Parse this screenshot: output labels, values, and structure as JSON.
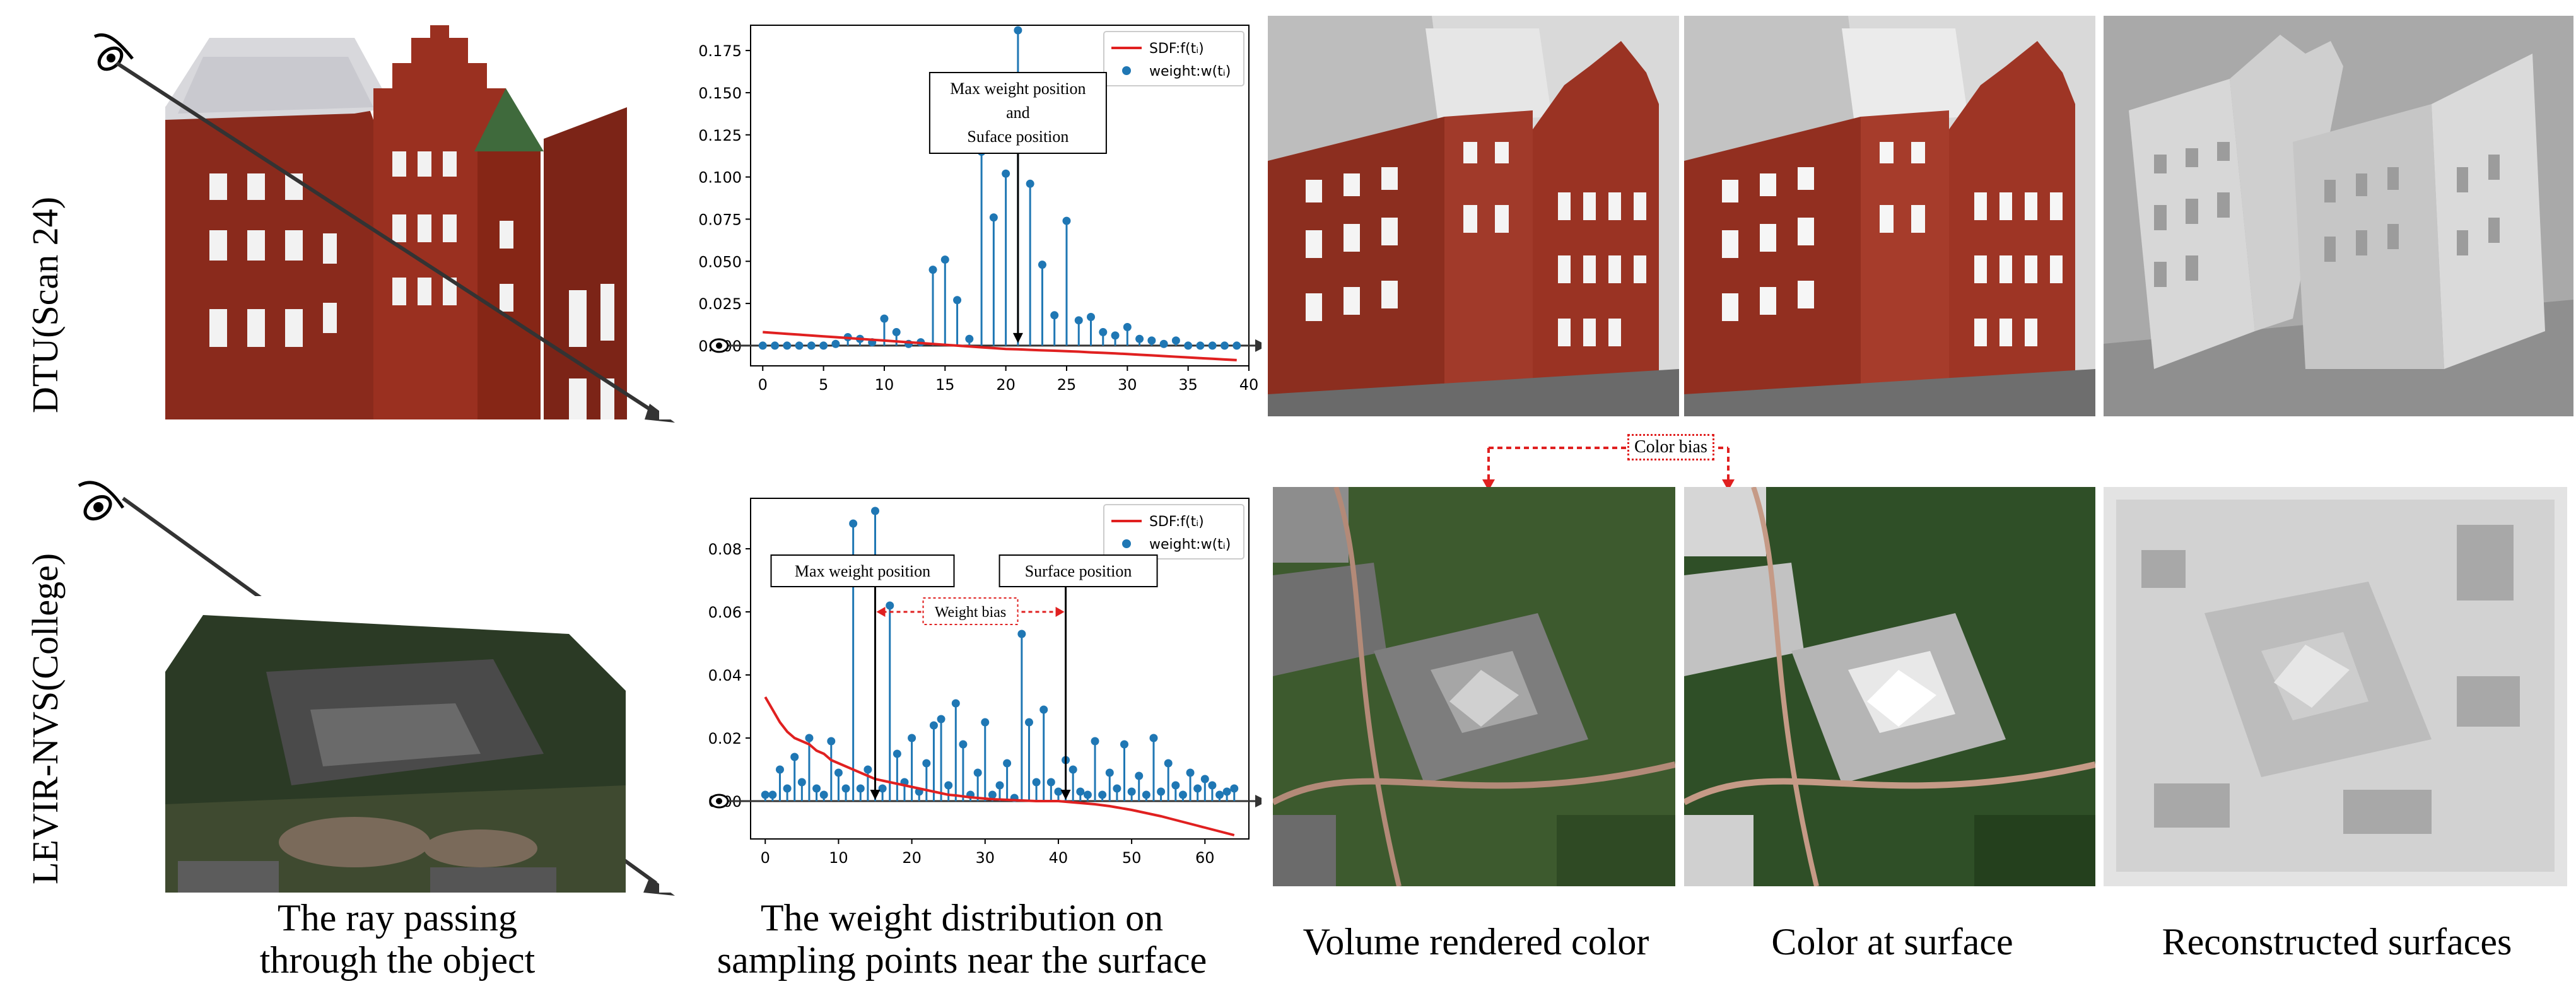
{
  "rows": [
    {
      "label": "DTU(Scan 24)"
    },
    {
      "label": "LEVIR-NVS(College)"
    }
  ],
  "captions": {
    "ray": "The ray passing\nthrough the object",
    "weight": "The weight distribution on\nsampling points near the surface",
    "volume": "Volume rendered color",
    "surface_color": "Color at surface",
    "reconstructed": "Reconstructed surfaces"
  },
  "color_bias_label": "Color bias",
  "chart_data": [
    {
      "type": "stem+line",
      "x": [
        0,
        1,
        2,
        3,
        4,
        5,
        6,
        7,
        8,
        9,
        10,
        11,
        12,
        13,
        14,
        15,
        16,
        17,
        18,
        19,
        20,
        21,
        22,
        23,
        24,
        25,
        26,
        27,
        28,
        29,
        30,
        31,
        32,
        33,
        34,
        35,
        36,
        37,
        38,
        39
      ],
      "series": [
        {
          "name": "SDF:f(tᵢ)",
          "kind": "line",
          "color": "#e02020",
          "values": [
            0.008,
            0.0075,
            0.007,
            0.0065,
            0.006,
            0.0055,
            0.005,
            0.0045,
            0.004,
            0.0035,
            0.003,
            0.0025,
            0.002,
            0.0015,
            0.001,
            0.0005,
            0.0,
            -0.0005,
            -0.001,
            -0.0015,
            -0.002,
            -0.0022,
            -0.0025,
            -0.0028,
            -0.003,
            -0.0033,
            -0.0036,
            -0.004,
            -0.0043,
            -0.0046,
            -0.005,
            -0.0054,
            -0.0058,
            -0.0062,
            -0.0066,
            -0.007,
            -0.0074,
            -0.0078,
            -0.0082,
            -0.0086
          ]
        },
        {
          "name": "weight:w(tᵢ)",
          "kind": "stem",
          "color": "#1f77b4",
          "values": [
            0,
            0,
            0,
            0,
            0,
            0,
            0.001,
            0.005,
            0.004,
            0.002,
            0.016,
            0.008,
            0.001,
            0.002,
            0.045,
            0.051,
            0.027,
            0.004,
            0.115,
            0.076,
            0.102,
            0.187,
            0.096,
            0.048,
            0.018,
            0.074,
            0.015,
            0.017,
            0.008,
            0.006,
            0.011,
            0.004,
            0.003,
            0.001,
            0.003,
            0,
            0,
            0,
            0,
            0
          ]
        }
      ],
      "xlim": [
        -1,
        40
      ],
      "ylim": [
        -0.012,
        0.19
      ],
      "xticks": [
        0,
        5,
        10,
        15,
        20,
        25,
        30,
        35,
        40
      ],
      "yticks": [
        0.0,
        0.025,
        0.05,
        0.075,
        0.1,
        0.125,
        0.15,
        0.175
      ],
      "ytick_labels": [
        "0.000",
        "0.025",
        "0.050",
        "0.075",
        "0.100",
        "0.125",
        "0.150",
        "0.175"
      ],
      "legend_position": "top-right",
      "annotations": [
        {
          "text": "Max weight position\nand\nSuface position",
          "x": 21
        }
      ]
    },
    {
      "type": "stem+line",
      "x": [
        0,
        1,
        2,
        3,
        4,
        5,
        6,
        7,
        8,
        9,
        10,
        11,
        12,
        13,
        14,
        15,
        16,
        17,
        18,
        19,
        20,
        21,
        22,
        23,
        24,
        25,
        26,
        27,
        28,
        29,
        30,
        31,
        32,
        33,
        34,
        35,
        36,
        37,
        38,
        39,
        40,
        41,
        42,
        43,
        44,
        45,
        46,
        47,
        48,
        49,
        50,
        51,
        52,
        53,
        54,
        55,
        56,
        57,
        58,
        59,
        60,
        61,
        62,
        63,
        64
      ],
      "series": [
        {
          "name": "SDF:f(tᵢ)",
          "kind": "line",
          "color": "#e02020",
          "values": [
            0.033,
            0.029,
            0.025,
            0.022,
            0.02,
            0.019,
            0.018,
            0.016,
            0.015,
            0.013,
            0.012,
            0.011,
            0.01,
            0.009,
            0.008,
            0.007,
            0.0065,
            0.006,
            0.0055,
            0.005,
            0.0045,
            0.004,
            0.0035,
            0.003,
            0.0025,
            0.002,
            0.0018,
            0.0015,
            0.0012,
            0.001,
            0.0008,
            0.0006,
            0.0005,
            0.0004,
            0.0003,
            0.0002,
            0.0001,
            0.0,
            0.0,
            0.0,
            0.0,
            -0.0002,
            -0.0004,
            -0.0006,
            -0.0008,
            -0.001,
            -0.0013,
            -0.0016,
            -0.002,
            -0.0024,
            -0.0028,
            -0.0033,
            -0.0038,
            -0.0043,
            -0.0048,
            -0.0054,
            -0.006,
            -0.0066,
            -0.0072,
            -0.0078,
            -0.0084,
            -0.009,
            -0.0096,
            -0.0102,
            -0.0108
          ]
        },
        {
          "name": "weight:w(tᵢ)",
          "kind": "stem",
          "color": "#1f77b4",
          "values": [
            0.002,
            0.002,
            0.01,
            0.004,
            0.014,
            0.006,
            0.02,
            0.004,
            0.002,
            0.019,
            0.009,
            0.004,
            0.088,
            0.004,
            0.01,
            0.092,
            0.004,
            0.062,
            0.015,
            0.006,
            0.02,
            0.003,
            0.012,
            0.024,
            0.026,
            0.005,
            0.031,
            0.018,
            0.002,
            0.009,
            0.025,
            0.002,
            0.005,
            0.012,
            0.001,
            0.053,
            0.025,
            0.006,
            0.029,
            0.006,
            0.003,
            0.013,
            0.01,
            0.003,
            0.002,
            0.019,
            0.002,
            0.009,
            0.004,
            0.018,
            0.003,
            0.008,
            0.002,
            0.02,
            0.003,
            0.012,
            0.005,
            0.002,
            0.009,
            0.004,
            0.007,
            0.005,
            0.002,
            0.003,
            0.004
          ]
        }
      ],
      "xlim": [
        -2,
        66
      ],
      "ylim": [
        -0.012,
        0.096
      ],
      "xticks": [
        0,
        10,
        20,
        30,
        40,
        50,
        60
      ],
      "yticks": [
        0.0,
        0.02,
        0.04,
        0.06,
        0.08
      ],
      "ytick_labels": [
        "0.00",
        "0.02",
        "0.04",
        "0.06",
        "0.08"
      ],
      "legend_position": "top-right",
      "annotations": [
        {
          "text": "Max weight position",
          "x": 15
        },
        {
          "text": "Surface position",
          "x": 41
        },
        {
          "text": "Weight bias",
          "x_from": 15,
          "x_to": 41
        }
      ]
    }
  ]
}
